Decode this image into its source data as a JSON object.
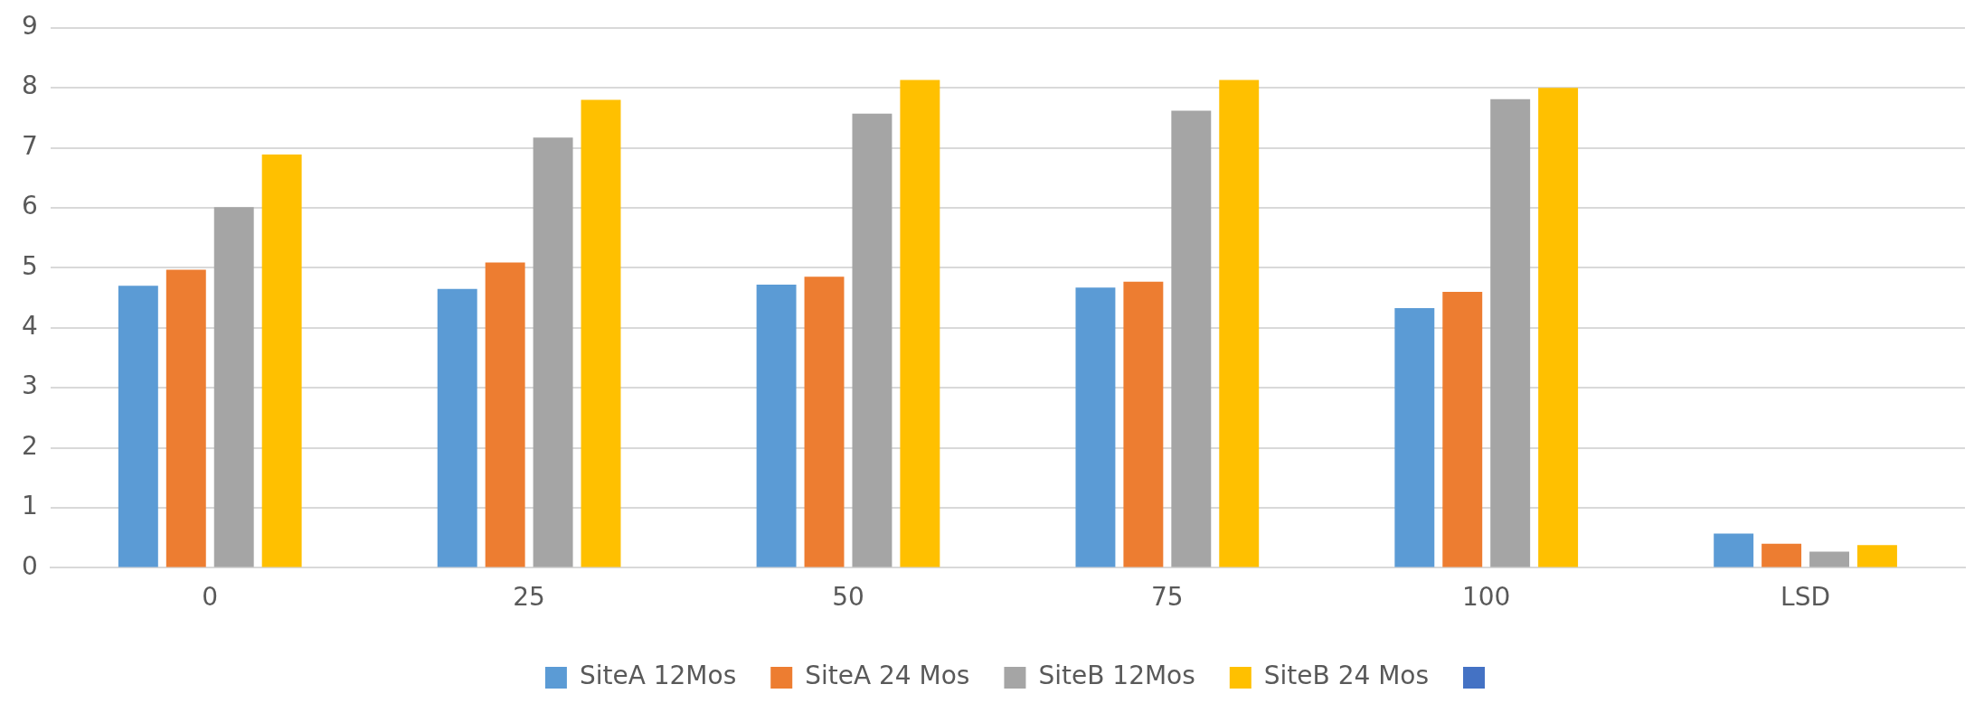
{
  "chart_data": {
    "type": "bar",
    "categories": [
      "0",
      "25",
      "50",
      "75",
      "100",
      "LSD"
    ],
    "series": [
      {
        "name": "SiteA 12Mos",
        "color": "#5b9bd5",
        "values": [
          4.7,
          4.65,
          4.72,
          4.67,
          4.33,
          0.57
        ]
      },
      {
        "name": "SiteA 24 Mos",
        "color": "#ed7d31",
        "values": [
          4.97,
          5.09,
          4.85,
          4.77,
          4.6,
          0.4
        ]
      },
      {
        "name": "SiteB 12Mos",
        "color": "#a5a5a5",
        "values": [
          6.01,
          7.17,
          7.57,
          7.62,
          7.81,
          0.27
        ]
      },
      {
        "name": "SiteB 24 Mos",
        "color": "#ffc000",
        "values": [
          6.89,
          7.8,
          8.13,
          8.13,
          8.0,
          0.38
        ]
      },
      {
        "color": "#4472c4",
        "values": [
          null,
          null,
          null,
          null,
          null,
          null
        ]
      }
    ],
    "ylim": [
      0,
      9
    ],
    "yticks": [
      0,
      1,
      2,
      3,
      4,
      5,
      6,
      7,
      8,
      9
    ],
    "grid": "y",
    "legend": "bottom"
  }
}
